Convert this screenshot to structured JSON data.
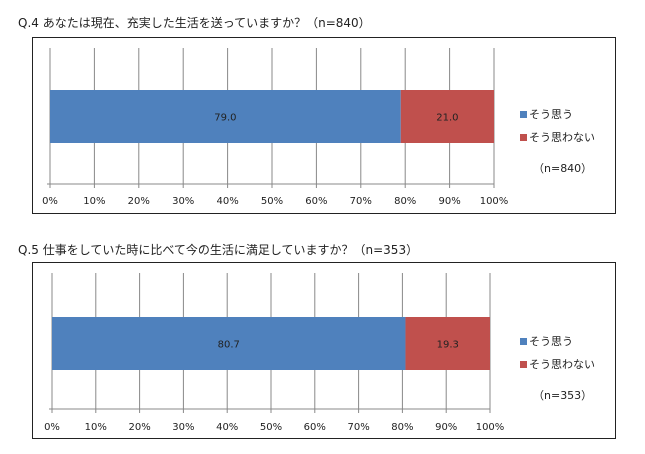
{
  "chart_data": [
    {
      "type": "bar",
      "stacked": "100%",
      "orientation": "horizontal",
      "title": "Q.4 あなたは現在、充実した生活を送っていますか？（n=840）",
      "series": [
        {
          "name": "そう思う",
          "values": [
            79.0
          ],
          "color": "#4f81bd"
        },
        {
          "name": "そう思わない",
          "values": [
            21.0
          ],
          "color": "#c0504d"
        }
      ],
      "xlim": [
        0,
        100
      ],
      "ticks": [
        "0%",
        "10%",
        "20%",
        "30%",
        "40%",
        "50%",
        "60%",
        "70%",
        "80%",
        "90%",
        "100%"
      ],
      "grid": true,
      "legend": "right",
      "note": "（n=840）"
    },
    {
      "type": "bar",
      "stacked": "100%",
      "orientation": "horizontal",
      "title": "Q.5 仕事をしていた時に比べて今の生活に満足していますか？（n=353）",
      "series": [
        {
          "name": "そう思う",
          "values": [
            80.7
          ],
          "color": "#4f81bd"
        },
        {
          "name": "そう思わない",
          "values": [
            19.3
          ],
          "color": "#c0504d"
        }
      ],
      "xlim": [
        0,
        100
      ],
      "ticks": [
        "0%",
        "10%",
        "20%",
        "30%",
        "40%",
        "50%",
        "60%",
        "70%",
        "80%",
        "90%",
        "100%"
      ],
      "grid": true,
      "legend": "right",
      "note": "（n=353）"
    }
  ]
}
